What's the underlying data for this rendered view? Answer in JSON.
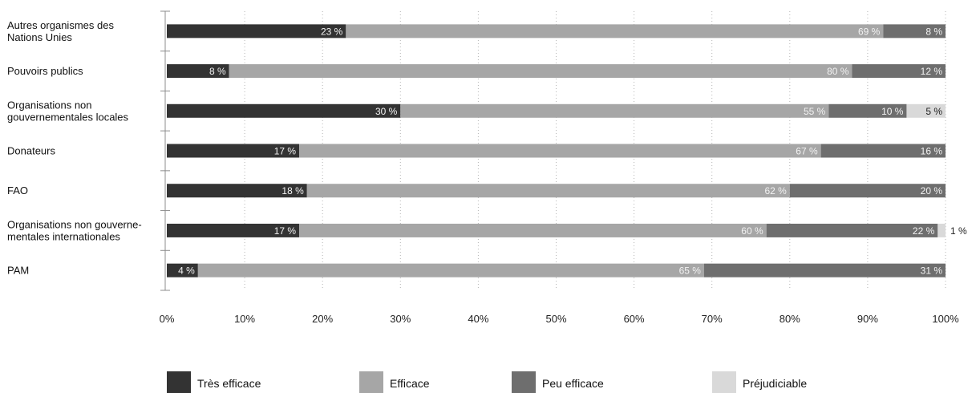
{
  "chart_data": {
    "type": "bar",
    "orientation": "horizontal",
    "stacked": true,
    "title": "",
    "xlabel": "",
    "ylabel": "",
    "xlim": [
      0,
      100
    ],
    "x_ticks": [
      "0%",
      "10%",
      "20%",
      "30%",
      "40%",
      "50%",
      "60%",
      "70%",
      "80%",
      "90%",
      "100%"
    ],
    "grid": "vertical-dotted",
    "legend_position": "bottom",
    "categories": [
      [
        "Autres organismes des",
        "Nations Unies"
      ],
      [
        "Pouvoirs publics"
      ],
      [
        "Organisations non",
        "gouvernementales locales"
      ],
      [
        "Donateurs"
      ],
      [
        "FAO"
      ],
      [
        "Organisations non gouverne-",
        "mentales internationales"
      ],
      [
        "PAM"
      ]
    ],
    "series": [
      {
        "name": "Très efficace",
        "color": "#333333",
        "label_color": "#f2f2f2",
        "values": [
          23,
          8,
          30,
          17,
          18,
          17,
          4
        ],
        "labels": [
          "23 %",
          "8 %",
          "30 %",
          "17 %",
          "18 %",
          "17 %",
          "4 %"
        ]
      },
      {
        "name": "Efficace",
        "color": "#a6a6a6",
        "label_color": "#f2f2f2",
        "values": [
          69,
          80,
          55,
          67,
          62,
          60,
          65
        ],
        "labels": [
          "69 %",
          "80 %",
          "55 %",
          "67 %",
          "62 %",
          "60 %",
          "65 %"
        ]
      },
      {
        "name": "Peu efficace",
        "color": "#6e6e6e",
        "label_color": "#f2f2f2",
        "values": [
          8,
          12,
          10,
          16,
          20,
          22,
          31
        ],
        "labels": [
          "8 %",
          "12 %",
          "10 %",
          "16 %",
          "20 %",
          "22 %",
          "31 %"
        ]
      },
      {
        "name": "Préjudiciable",
        "color": "#d9d9d9",
        "label_color": "#222222",
        "values": [
          0,
          0,
          5,
          0,
          0,
          1,
          0
        ],
        "labels": [
          "",
          "",
          "5 %",
          "",
          "",
          "1 %",
          ""
        ]
      }
    ]
  }
}
